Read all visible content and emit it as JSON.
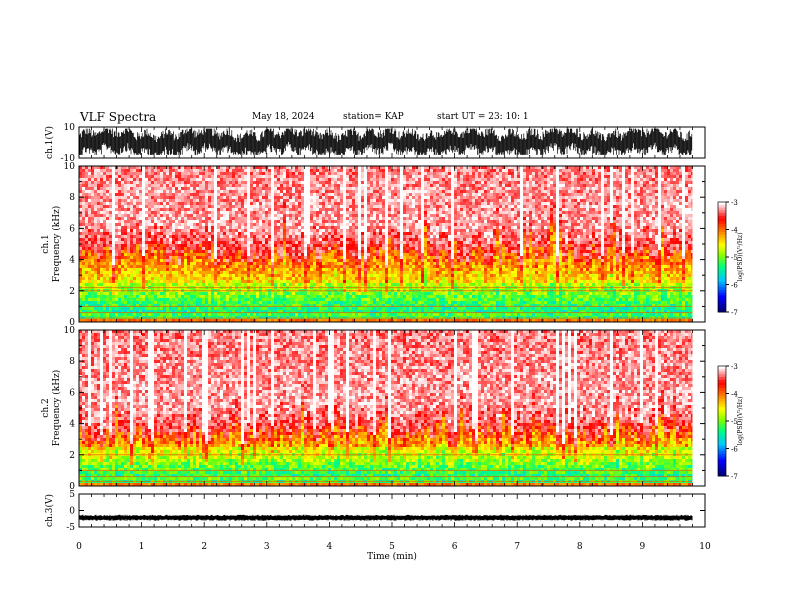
{
  "header": {
    "title": "VLF Spectra",
    "date": "May 18, 2024",
    "station": "station= KAP",
    "start": "start  UT  =   23: 10: 1"
  },
  "colors": {
    "waveform": "#000000",
    "colormap": [
      "#000064",
      "#0000ff",
      "#00c8ff",
      "#00ff80",
      "#80ff00",
      "#ffff00",
      "#ff8000",
      "#ff0000",
      "#ffffff"
    ]
  },
  "chart_data": [
    {
      "type": "line",
      "name": "ch1-waveform",
      "ylabel": "ch.1(V)",
      "ylim": [
        -10,
        10
      ],
      "yticks": [
        "10",
        "-10"
      ],
      "x": [
        0,
        9.8
      ],
      "description_values": "dense oscillation, roughly between -8 and +9 V"
    },
    {
      "type": "heatmap",
      "name": "ch1-spectrogram",
      "ylabel": "ch.1\nFrequency (kHz)",
      "ylim": [
        0,
        10
      ],
      "yticks": [
        "0",
        "2",
        "4",
        "6",
        "8",
        "10"
      ],
      "colorbar": {
        "label": "log(PSD)(V²/Hz)",
        "ticks": [
          "-3",
          "-4",
          "-5",
          "-6",
          "-7"
        ],
        "range": [
          -7,
          -3
        ]
      },
      "strong_band_kHz": [
        0,
        4.5
      ],
      "horizontal_lines_kHz": [
        0.25,
        0.6,
        1.0,
        2.0,
        2.2
      ]
    },
    {
      "type": "heatmap",
      "name": "ch2-spectrogram",
      "ylabel": "ch.2\nFrequency (kHz)",
      "ylim": [
        0,
        10
      ],
      "yticks": [
        "0",
        "2",
        "4",
        "6",
        "8",
        "10"
      ],
      "colorbar": {
        "label": "log(PSD)(V²/Hz)",
        "ticks": [
          "-3",
          "-4",
          "-5",
          "-6",
          "-7"
        ],
        "range": [
          -7,
          -3
        ]
      },
      "strong_band_kHz": [
        0,
        3.5
      ],
      "horizontal_lines_kHz": [
        0.3,
        0.6,
        1.0,
        2.0
      ]
    },
    {
      "type": "line",
      "name": "ch3-waveform",
      "ylabel": "ch.3(V)",
      "ylim": [
        -5,
        5
      ],
      "yticks": [
        "5",
        "0",
        "-5"
      ],
      "baseline_V": -2.2
    }
  ],
  "xaxis": {
    "label": "Time  (min)",
    "range": [
      0,
      10
    ],
    "ticks": [
      "0",
      "1",
      "2",
      "3",
      "4",
      "5",
      "6",
      "7",
      "8",
      "9",
      "10"
    ],
    "data_end": 9.8
  }
}
